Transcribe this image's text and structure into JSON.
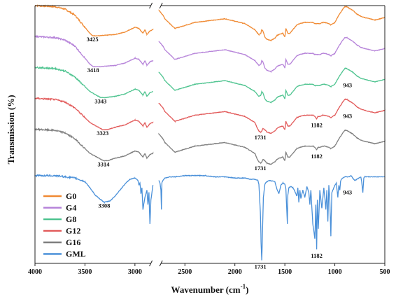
{
  "chart_data": {
    "type": "line",
    "xlabel": "Wavenumber (cm",
    "xlabel_sup": "-1",
    "xlabel_tail": ")",
    "ylabel": "Transmission (%)",
    "xlim": [
      4000,
      500
    ],
    "x_reversed": true,
    "axis_break": [
      2820,
      2760
    ],
    "xticks": [
      4000,
      3500,
      3000,
      2500,
      2000,
      1500,
      1000,
      500
    ],
    "xtick_labels": [
      "4000",
      "3500",
      "3000",
      "2500",
      "2000",
      "1500",
      "1000",
      "500"
    ],
    "ylim": [
      0,
      100
    ],
    "y_ticks_shown": false,
    "grid": false,
    "legend_position": "bottom-left",
    "series": [
      {
        "name": "G0",
        "color": "#F08A33",
        "offset": 88,
        "noise": 0.55,
        "x": [
          4000,
          3800,
          3700,
          3600,
          3500,
          3450,
          3425,
          3350,
          3200,
          3100,
          3050,
          3000,
          2960,
          2940,
          2920,
          2900,
          2880,
          2860,
          2850,
          2820,
          2760,
          2740,
          2720,
          2700,
          2650,
          2600,
          2400,
          2200,
          2100,
          2000,
          1900,
          1800,
          1780,
          1760,
          1740,
          1731,
          1720,
          1700,
          1680,
          1640,
          1600,
          1580,
          1560,
          1520,
          1500,
          1490,
          1470,
          1450,
          1400,
          1380,
          1350,
          1300,
          1250,
          1220,
          1200,
          1182,
          1170,
          1150,
          1120,
          1100,
          1060,
          1040,
          1000,
          960,
          943,
          920,
          900,
          880,
          860,
          820,
          780,
          740,
          700,
          650,
          600,
          550,
          500
        ],
        "y": [
          100,
          99,
          97,
          92,
          82,
          77,
          75,
          75,
          76,
          78,
          80,
          82,
          81,
          79,
          77,
          80,
          76,
          78,
          79,
          80,
          96,
          94,
          92,
          89,
          85,
          81,
          86,
          88,
          89,
          87,
          85,
          80,
          78,
          76,
          77,
          80,
          79,
          74,
          72,
          71,
          73,
          75,
          76,
          77,
          74,
          81,
          77,
          77,
          82,
          84,
          85,
          86,
          86,
          86,
          85,
          85,
          85,
          85,
          86,
          86,
          85,
          84,
          86,
          92,
          94,
          97,
          99,
          99,
          98,
          96,
          93,
          91,
          90,
          89,
          88,
          89,
          90
        ]
      },
      {
        "name": "G4",
        "color": "#B683D9",
        "offset": 76,
        "noise": 0.5,
        "x": [
          4000,
          3800,
          3700,
          3600,
          3500,
          3450,
          3418,
          3350,
          3200,
          3100,
          3050,
          3000,
          2960,
          2940,
          2920,
          2900,
          2880,
          2860,
          2850,
          2820,
          2760,
          2740,
          2720,
          2700,
          2650,
          2600,
          2400,
          2200,
          2100,
          2000,
          1900,
          1800,
          1780,
          1760,
          1740,
          1731,
          1720,
          1700,
          1680,
          1640,
          1600,
          1580,
          1560,
          1520,
          1500,
          1490,
          1470,
          1450,
          1400,
          1380,
          1350,
          1300,
          1250,
          1220,
          1200,
          1182,
          1170,
          1150,
          1120,
          1100,
          1060,
          1040,
          1000,
          960,
          943,
          920,
          900,
          880,
          860,
          820,
          780,
          740,
          700,
          650,
          600,
          550,
          500
        ],
        "y": [
          100,
          99,
          97,
          92,
          82,
          77,
          75,
          75,
          76,
          78,
          80,
          82,
          81,
          79,
          77,
          80,
          76,
          78,
          79,
          80,
          96,
          94,
          92,
          89,
          85,
          81,
          86,
          88,
          89,
          87,
          85,
          80,
          78,
          76,
          77,
          80,
          79,
          74,
          72,
          71,
          73,
          75,
          76,
          77,
          74,
          81,
          77,
          77,
          82,
          84,
          85,
          86,
          86,
          86,
          85,
          85,
          85,
          85,
          86,
          86,
          85,
          84,
          86,
          92,
          94,
          97,
          99,
          99,
          98,
          96,
          93,
          91,
          90,
          89,
          88,
          89,
          90
        ]
      },
      {
        "name": "G8",
        "color": "#4FC490",
        "offset": 64,
        "noise": 0.5,
        "x": [
          4000,
          3800,
          3700,
          3600,
          3500,
          3450,
          3343,
          3300,
          3200,
          3100,
          3050,
          3000,
          2960,
          2940,
          2920,
          2900,
          2880,
          2860,
          2850,
          2820,
          2760,
          2740,
          2720,
          2700,
          2650,
          2600,
          2400,
          2200,
          2100,
          2000,
          1900,
          1800,
          1780,
          1760,
          1740,
          1731,
          1720,
          1700,
          1680,
          1640,
          1600,
          1580,
          1560,
          1520,
          1500,
          1490,
          1470,
          1450,
          1400,
          1380,
          1350,
          1300,
          1250,
          1220,
          1200,
          1182,
          1170,
          1150,
          1120,
          1100,
          1060,
          1040,
          1000,
          960,
          943,
          920,
          900,
          880,
          860,
          820,
          780,
          740,
          700,
          650,
          600,
          550,
          500
        ],
        "y": [
          100,
          99,
          97,
          92,
          84,
          80,
          75,
          75,
          76,
          78,
          80,
          82,
          81,
          79,
          77,
          80,
          76,
          78,
          79,
          80,
          96,
          94,
          92,
          89,
          85,
          81,
          86,
          88,
          89,
          87,
          85,
          80,
          78,
          76,
          77,
          80,
          79,
          74,
          72,
          71,
          73,
          75,
          76,
          77,
          74,
          81,
          77,
          77,
          82,
          84,
          85,
          86,
          86,
          86,
          85,
          85,
          85,
          85,
          86,
          86,
          85,
          84,
          86,
          92,
          94,
          97,
          99,
          99,
          98,
          96,
          93,
          91,
          90,
          89,
          88,
          89,
          90
        ]
      },
      {
        "name": "G12",
        "color": "#E25A5A",
        "offset": 52,
        "noise": 0.5,
        "x": [
          4000,
          3800,
          3700,
          3600,
          3500,
          3450,
          3323,
          3280,
          3200,
          3100,
          3050,
          3000,
          2960,
          2940,
          2920,
          2900,
          2880,
          2860,
          2850,
          2820,
          2760,
          2740,
          2720,
          2700,
          2650,
          2600,
          2400,
          2200,
          2100,
          2000,
          1900,
          1800,
          1780,
          1760,
          1740,
          1731,
          1720,
          1700,
          1680,
          1640,
          1600,
          1580,
          1560,
          1520,
          1500,
          1490,
          1470,
          1450,
          1400,
          1380,
          1350,
          1300,
          1250,
          1220,
          1200,
          1182,
          1170,
          1150,
          1120,
          1100,
          1060,
          1040,
          1000,
          960,
          943,
          920,
          900,
          880,
          860,
          820,
          780,
          740,
          700,
          650,
          600,
          550,
          500
        ],
        "y": [
          100,
          99,
          97,
          92,
          84,
          80,
          74,
          74,
          76,
          78,
          80,
          82,
          81,
          79,
          77,
          80,
          76,
          78,
          79,
          80,
          96,
          94,
          92,
          89,
          85,
          81,
          86,
          88,
          89,
          87,
          85,
          80,
          76,
          73,
          72,
          73,
          75,
          74,
          72,
          71,
          73,
          75,
          76,
          77,
          74,
          81,
          77,
          77,
          82,
          84,
          85,
          86,
          86,
          86,
          85,
          83,
          85,
          85,
          86,
          86,
          85,
          84,
          86,
          92,
          94,
          97,
          99,
          99,
          98,
          96,
          93,
          91,
          90,
          89,
          88,
          89,
          90
        ]
      },
      {
        "name": "G16",
        "color": "#7F7F7F",
        "offset": 40,
        "noise": 0.55,
        "x": [
          4000,
          3800,
          3700,
          3600,
          3500,
          3450,
          3314,
          3270,
          3200,
          3100,
          3050,
          3000,
          2960,
          2940,
          2920,
          2900,
          2880,
          2860,
          2850,
          2820,
          2760,
          2740,
          2720,
          2700,
          2650,
          2600,
          2400,
          2200,
          2100,
          2000,
          1900,
          1800,
          1780,
          1760,
          1740,
          1731,
          1720,
          1700,
          1680,
          1640,
          1600,
          1580,
          1560,
          1520,
          1500,
          1490,
          1470,
          1450,
          1400,
          1380,
          1350,
          1300,
          1250,
          1220,
          1200,
          1182,
          1170,
          1150,
          1120,
          1100,
          1060,
          1040,
          1000,
          960,
          943,
          920,
          900,
          880,
          860,
          820,
          780,
          740,
          700,
          650,
          600,
          550,
          500
        ],
        "y": [
          100,
          99,
          97,
          92,
          84,
          80,
          74,
          74,
          76,
          78,
          80,
          82,
          81,
          79,
          77,
          80,
          76,
          78,
          79,
          80,
          96,
          94,
          92,
          89,
          85,
          81,
          86,
          88,
          89,
          87,
          85,
          80,
          76,
          73,
          72,
          73,
          75,
          74,
          72,
          71,
          73,
          75,
          76,
          77,
          74,
          81,
          77,
          77,
          82,
          84,
          85,
          86,
          86,
          86,
          85,
          83,
          85,
          85,
          86,
          86,
          85,
          84,
          86,
          92,
          94,
          97,
          99,
          99,
          98,
          96,
          93,
          91,
          90,
          89,
          88,
          89,
          90
        ]
      },
      {
        "name": "GML",
        "color": "#4A90D9",
        "offset": 22,
        "noise": 0.6,
        "x": [
          4000,
          3800,
          3700,
          3600,
          3500,
          3450,
          3400,
          3308,
          3250,
          3200,
          3150,
          3100,
          3050,
          3000,
          2970,
          2960,
          2950,
          2940,
          2930,
          2920,
          2900,
          2880,
          2870,
          2860,
          2850,
          2840,
          2820,
          2760,
          2750,
          2740,
          2735,
          2730,
          2720,
          2700,
          2650,
          2600,
          2500,
          2400,
          2300,
          2200,
          2100,
          2000,
          1900,
          1850,
          1800,
          1770,
          1760,
          1745,
          1738,
          1731,
          1724,
          1715,
          1700,
          1680,
          1650,
          1600,
          1580,
          1560,
          1540,
          1520,
          1500,
          1490,
          1480,
          1475,
          1470,
          1460,
          1440,
          1420,
          1400,
          1380,
          1370,
          1360,
          1350,
          1340,
          1320,
          1300,
          1280,
          1260,
          1250,
          1240,
          1220,
          1200,
          1190,
          1182,
          1175,
          1165,
          1150,
          1130,
          1110,
          1100,
          1090,
          1080,
          1070,
          1060,
          1050,
          1040,
          1030,
          1020,
          1000,
          985,
          970,
          960,
          950,
          943,
          935,
          920,
          900,
          880,
          860,
          840,
          820,
          800,
          780,
          760,
          740,
          730,
          720,
          710,
          700,
          680,
          650,
          600,
          550,
          500
        ],
        "y": [
          100,
          100,
          99,
          98,
          95,
          90,
          84,
          78,
          79,
          83,
          88,
          93,
          97,
          98,
          96,
          92,
          94,
          85,
          90,
          72,
          82,
          88,
          76,
          86,
          60,
          80,
          92,
          96,
          94,
          88,
          72,
          94,
          96,
          98,
          99,
          99,
          100,
          100,
          100,
          99,
          99,
          98,
          98,
          97,
          97,
          96,
          93,
          70,
          45,
          30,
          52,
          82,
          93,
          95,
          96,
          95,
          89,
          85,
          92,
          94,
          93,
          89,
          70,
          60,
          84,
          90,
          91,
          90,
          87,
          83,
          90,
          78,
          88,
          81,
          88,
          82,
          91,
          86,
          76,
          88,
          60,
          48,
          76,
          39,
          80,
          56,
          88,
          73,
          90,
          82,
          72,
          88,
          62,
          92,
          80,
          50,
          86,
          88,
          92,
          94,
          82,
          92,
          88,
          95,
          97,
          98,
          99,
          99,
          99,
          100,
          98,
          96,
          97,
          98,
          99,
          94,
          86,
          98,
          99,
          99,
          99,
          99,
          99,
          99
        ]
      }
    ],
    "annotations": [
      {
        "text": "3425",
        "series": "G0",
        "x": 3425
      },
      {
        "text": "3418",
        "series": "G4",
        "x": 3418
      },
      {
        "text": "3343",
        "series": "G8",
        "x": 3343
      },
      {
        "text": "3323",
        "series": "G12",
        "x": 3323
      },
      {
        "text": "3314",
        "series": "G16",
        "x": 3314
      },
      {
        "text": "3308",
        "series": "GML",
        "x": 3308
      },
      {
        "text": "1731",
        "series": "G12",
        "x": 1731
      },
      {
        "text": "1731",
        "series": "G16",
        "x": 1731
      },
      {
        "text": "1731",
        "series": "GML",
        "x": 1731
      },
      {
        "text": "1182",
        "series": "G12",
        "x": 1182
      },
      {
        "text": "1182",
        "series": "G16",
        "x": 1182
      },
      {
        "text": "1182",
        "series": "GML",
        "x": 1182
      },
      {
        "text": "943",
        "series": "G8",
        "x": 943
      },
      {
        "text": "943",
        "series": "G12",
        "x": 943
      },
      {
        "text": "943",
        "series": "GML",
        "x": 943
      }
    ]
  }
}
